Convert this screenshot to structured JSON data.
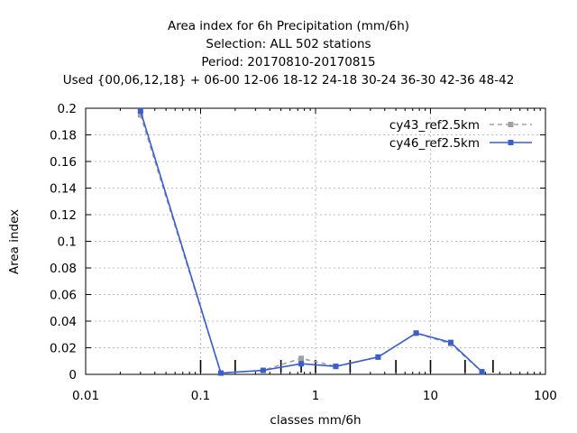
{
  "chart_data": {
    "type": "line",
    "title_lines": [
      "Area index  for 6h Precipitation (mm/6h)",
      "Selection: ALL     502 stations",
      "Period: 20170810-20170815",
      "Used {00,06,12,18} + 06-00 12-06 18-12 24-18 30-24 36-30 42-36 48-42"
    ],
    "xlabel": "classes mm/6h",
    "ylabel": "Area index",
    "x_scale": "log",
    "xlim": [
      0.01,
      100
    ],
    "ylim": [
      0,
      0.2
    ],
    "x_ticks": [
      0.01,
      0.1,
      1,
      10,
      100
    ],
    "x_tick_labels": [
      "0.01",
      "0.1",
      "1",
      "10",
      "100"
    ],
    "y_ticks": [
      0,
      0.02,
      0.04,
      0.06,
      0.08,
      0.1,
      0.12,
      0.14,
      0.16,
      0.18,
      0.2
    ],
    "y_tick_labels": [
      "0",
      "0.02",
      "0.04",
      "0.06",
      "0.08",
      "0.1",
      "0.12",
      "0.14",
      "0.16",
      "0.18",
      "0.2"
    ],
    "grid": true,
    "legend_position": "top-right",
    "class_markers": [
      0.1,
      0.2,
      0.5,
      0.75,
      1,
      2,
      5,
      10,
      20,
      35
    ],
    "series": [
      {
        "name": "cy43_ref2.5km",
        "color": "#a0a0a0",
        "dash": true,
        "x": [
          0.03,
          0.15,
          0.35,
          0.75,
          1.5,
          3.5,
          7.5,
          15,
          28
        ],
        "y": [
          0.195,
          0.001,
          0.003,
          0.012,
          0.006,
          0.013,
          0.031,
          0.023,
          0.002
        ]
      },
      {
        "name": "cy46_ref2.5km",
        "color": "#3a5fcd",
        "dash": false,
        "x": [
          0.03,
          0.15,
          0.35,
          0.75,
          1.5,
          3.5,
          7.5,
          15,
          28
        ],
        "y": [
          0.198,
          0.001,
          0.003,
          0.008,
          0.006,
          0.013,
          0.031,
          0.024,
          0.002
        ]
      }
    ]
  }
}
